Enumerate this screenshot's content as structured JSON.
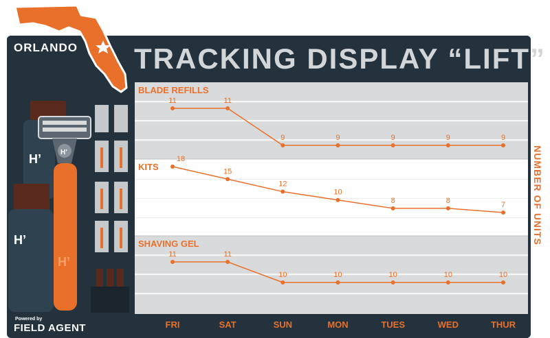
{
  "header": {
    "title": "TRACKING DISPLAY “LIFT”",
    "location": "ORLANDO"
  },
  "branding": {
    "powered_by": "Powered by",
    "company": "FIELD AGENT"
  },
  "colors": {
    "accent": "#e8702a",
    "board": "#24323d",
    "band": "#d9dadb"
  },
  "chart_data": {
    "type": "line",
    "categories": [
      "FRI",
      "SAT",
      "SUN",
      "MON",
      "TUES",
      "WED",
      "THUR"
    ],
    "ylabel": "NUMBER OF UNITS",
    "series": [
      {
        "name": "BLADE REFILLS",
        "values": [
          11,
          11,
          9,
          9,
          9,
          9,
          9
        ]
      },
      {
        "name": "KITS",
        "values": [
          18,
          15,
          12,
          10,
          8,
          8,
          7
        ]
      },
      {
        "name": "SHAVING GEL",
        "values": [
          11,
          11,
          10,
          10,
          10,
          10,
          10
        ]
      }
    ],
    "grid": true
  }
}
